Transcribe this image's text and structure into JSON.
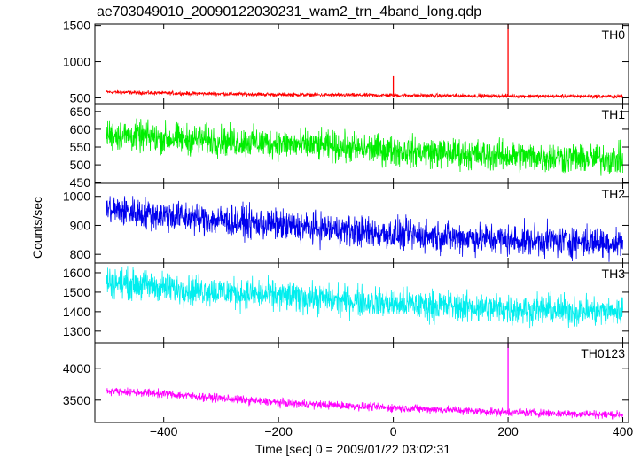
{
  "chart_data": {
    "type": "line",
    "title": "ae703049010_20090122030231_wam2_trn_4band_long.qdp",
    "xlabel": "Time [sec] 0 = 2009/01/22 03:02:31",
    "ylabel": "Counts/sec",
    "xlim": [
      -520,
      410
    ],
    "x_ticks": [
      -400,
      -200,
      0,
      200,
      400
    ],
    "x_tick_labels": [
      "−400",
      "−200",
      "0",
      "200",
      "400"
    ],
    "grid": false,
    "panels": [
      {
        "name": "TH0",
        "color": "#ff0000",
        "ylim": [
          420,
          1520
        ],
        "yticks": [
          500,
          1000,
          1500
        ],
        "noise_ampl": 18,
        "trend": [
          {
            "x": -500,
            "y": 580
          },
          {
            "x": -400,
            "y": 565
          },
          {
            "x": -200,
            "y": 545
          },
          {
            "x": 0,
            "y": 535
          },
          {
            "x": 200,
            "y": 525
          },
          {
            "x": 400,
            "y": 520
          }
        ],
        "spikes": [
          {
            "x": 0,
            "y": 800
          },
          {
            "x": 200,
            "y": 1520
          }
        ]
      },
      {
        "name": "TH1",
        "color": "#00ee00",
        "ylim": [
          448,
          672
        ],
        "yticks": [
          450,
          500,
          550,
          600,
          650
        ],
        "noise_ampl": 30,
        "trend": [
          {
            "x": -500,
            "y": 585
          },
          {
            "x": -400,
            "y": 575
          },
          {
            "x": -200,
            "y": 560
          },
          {
            "x": 0,
            "y": 540
          },
          {
            "x": 200,
            "y": 525
          },
          {
            "x": 400,
            "y": 515
          }
        ],
        "spikes": []
      },
      {
        "name": "TH2",
        "color": "#0000ee",
        "ylim": [
          770,
          1045
        ],
        "yticks": [
          800,
          900,
          1000
        ],
        "noise_ampl": 38,
        "trend": [
          {
            "x": -500,
            "y": 955
          },
          {
            "x": -400,
            "y": 935
          },
          {
            "x": -200,
            "y": 900
          },
          {
            "x": 0,
            "y": 870
          },
          {
            "x": 200,
            "y": 850
          },
          {
            "x": 400,
            "y": 840
          }
        ],
        "spikes": []
      },
      {
        "name": "TH3",
        "color": "#00eeee",
        "ylim": [
          1240,
          1650
        ],
        "yticks": [
          1300,
          1400,
          1500,
          1600
        ],
        "noise_ampl": 55,
        "trend": [
          {
            "x": -500,
            "y": 1555
          },
          {
            "x": -400,
            "y": 1525
          },
          {
            "x": -200,
            "y": 1480
          },
          {
            "x": 0,
            "y": 1440
          },
          {
            "x": 200,
            "y": 1415
          },
          {
            "x": 400,
            "y": 1400
          }
        ],
        "spikes": []
      },
      {
        "name": "TH0123",
        "color": "#ff00ff",
        "ylim": [
          3150,
          4400
        ],
        "yticks": [
          3500,
          4000
        ],
        "noise_ampl": 45,
        "trend": [
          {
            "x": -500,
            "y": 3650
          },
          {
            "x": -400,
            "y": 3600
          },
          {
            "x": -200,
            "y": 3460
          },
          {
            "x": 0,
            "y": 3380
          },
          {
            "x": 200,
            "y": 3310
          },
          {
            "x": 400,
            "y": 3270
          }
        ],
        "spikes": [
          {
            "x": 200,
            "y": 4400
          }
        ]
      }
    ]
  }
}
